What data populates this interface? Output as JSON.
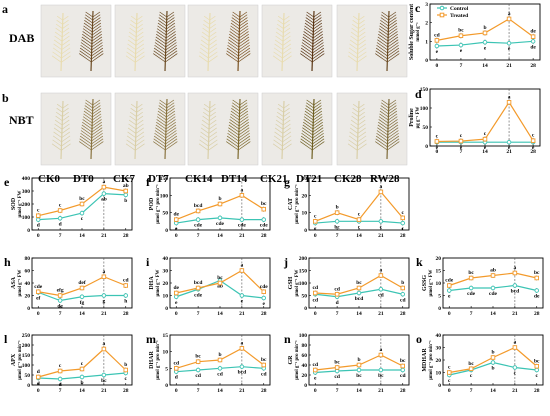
{
  "colors": {
    "control": "#3cc4b4",
    "treated": "#f39a2b",
    "stain_bg": "#eceae6"
  },
  "stains": {
    "DAB": "DAB",
    "NBT": "NBT",
    "groups": [
      "CK0",
      "DT0",
      "CK7",
      "DT7",
      "CK14",
      "DT14",
      "CK21",
      "DT21",
      "CK28",
      "RW28"
    ]
  },
  "panel_letters": {
    "a": "a",
    "b": "b"
  },
  "legend": {
    "control": "Control",
    "treated": "Treated"
  },
  "chart_data": [
    {
      "id": "c",
      "type": "line",
      "ylabel": "Soluble Sugar content",
      "unit": "mmol g⁻¹",
      "x": [
        0,
        7,
        14,
        21,
        28
      ],
      "ylim": [
        0,
        3
      ],
      "yticks": [
        0,
        1,
        2,
        3
      ],
      "series": [
        {
          "name": "Control",
          "values": [
            0.75,
            0.8,
            0.95,
            0.9,
            1.0
          ],
          "letters": [
            "e",
            "e",
            "e",
            "e",
            "de"
          ]
        },
        {
          "name": "Treated",
          "values": [
            1.05,
            1.3,
            1.45,
            2.2,
            1.25
          ],
          "letters": [
            "cd",
            "bc",
            "b",
            "a",
            "de"
          ]
        }
      ]
    },
    {
      "id": "d",
      "type": "line",
      "ylabel": "Proline",
      "unit": "μg g⁻¹ FW",
      "x": [
        0,
        7,
        14,
        21,
        28
      ],
      "ylim": [
        0,
        150
      ],
      "yticks": [
        0,
        50,
        100,
        150
      ],
      "series": [
        {
          "name": "Control",
          "values": [
            10,
            10,
            10,
            10,
            10
          ],
          "letters": [
            "e",
            "e",
            "e",
            "e",
            "e"
          ]
        },
        {
          "name": "Treated",
          "values": [
            12,
            13,
            18,
            115,
            14
          ],
          "letters": [
            "c",
            "c",
            "c",
            "a",
            "c"
          ]
        }
      ]
    },
    {
      "id": "e",
      "type": "line",
      "ylabel": "SOD",
      "unit": "μmol g⁻¹ FW",
      "x": [
        0,
        7,
        14,
        21,
        28
      ],
      "ylim": [
        0,
        400
      ],
      "yticks": [
        0,
        100,
        200,
        300,
        400
      ],
      "series": [
        {
          "name": "Control",
          "values": [
            80,
            90,
            130,
            280,
            270
          ],
          "letters": [
            "d",
            "d",
            "c",
            "ab",
            "b"
          ]
        },
        {
          "name": "Treated",
          "values": [
            110,
            150,
            200,
            330,
            300
          ],
          "letters": [
            "c",
            "c",
            "bc",
            "a",
            "ab"
          ]
        }
      ]
    },
    {
      "id": "f",
      "type": "line",
      "ylabel": "POD",
      "unit": "μmol g⁻¹ pro min⁻¹",
      "x": [
        0,
        7,
        14,
        21,
        28
      ],
      "ylim": [
        0,
        150
      ],
      "yticks": [
        0,
        50,
        100,
        150
      ],
      "series": [
        {
          "name": "Control",
          "values": [
            20,
            30,
            35,
            30,
            30
          ],
          "letters": [
            "e",
            "cde",
            "cde",
            "cde",
            "cde"
          ]
        },
        {
          "name": "Treated",
          "values": [
            30,
            55,
            75,
            100,
            60
          ],
          "letters": [
            "de",
            "bcd",
            "b",
            "a",
            "bc"
          ]
        }
      ]
    },
    {
      "id": "g",
      "type": "line",
      "ylabel": "CAT",
      "unit": "μmol g⁻¹ pro min⁻¹",
      "x": [
        0,
        7,
        14,
        21,
        28
      ],
      "ylim": [
        0,
        30
      ],
      "yticks": [
        0,
        10,
        20,
        30
      ],
      "series": [
        {
          "name": "Control",
          "values": [
            4,
            5,
            5,
            5,
            4
          ],
          "letters": [
            "c",
            "bc",
            "c",
            "c",
            "c"
          ]
        },
        {
          "name": "Treated",
          "values": [
            5,
            10,
            6,
            22,
            7
          ],
          "letters": [
            "c",
            "b",
            "c",
            "a",
            "c"
          ]
        }
      ]
    },
    {
      "id": "h",
      "type": "line",
      "ylabel": "ASA",
      "unit": "μmol g⁻¹ FW",
      "x": [
        0,
        7,
        14,
        21,
        28
      ],
      "ylim": [
        0,
        80
      ],
      "yticks": [
        0,
        20,
        40,
        60,
        80
      ],
      "series": [
        {
          "name": "Control",
          "values": [
            25,
            12,
            18,
            20,
            20
          ],
          "letters": [
            "ef",
            "de",
            "fg",
            "g",
            "h"
          ]
        },
        {
          "name": "Treated",
          "values": [
            26,
            20,
            32,
            50,
            36
          ],
          "letters": [
            "cde",
            "efg",
            "def",
            "a",
            "cd"
          ]
        }
      ]
    },
    {
      "id": "i",
      "type": "line",
      "ylabel": "DHA",
      "unit": "μmol g⁻¹ FW",
      "x": [
        0,
        7,
        14,
        21,
        28
      ],
      "ylim": [
        0,
        40
      ],
      "yticks": [
        0,
        10,
        20,
        30,
        40
      ],
      "series": [
        {
          "name": "Control",
          "values": [
            9,
            15,
            22,
            10,
            8
          ],
          "letters": [
            "e",
            "cde",
            "ab",
            "e",
            "e"
          ]
        },
        {
          "name": "Treated",
          "values": [
            12,
            16,
            20,
            30,
            13
          ],
          "letters": [
            "de",
            "bcd",
            "bc",
            "a",
            "cde"
          ]
        }
      ]
    },
    {
      "id": "j",
      "type": "line",
      "ylabel": "GSH",
      "unit": "μmol g⁻¹ FW",
      "x": [
        0,
        7,
        14,
        21,
        28
      ],
      "ylim": [
        0,
        200
      ],
      "yticks": [
        0,
        50,
        100,
        150,
        200
      ],
      "series": [
        {
          "name": "Control",
          "values": [
            55,
            45,
            60,
            75,
            55
          ],
          "letters": [
            "cd",
            "d",
            "bcd",
            "cd",
            "cd"
          ]
        },
        {
          "name": "Treated",
          "values": [
            60,
            55,
            80,
            130,
            80
          ],
          "letters": [
            "cd",
            "cd",
            "bc",
            "a",
            "b"
          ]
        }
      ]
    },
    {
      "id": "k",
      "type": "line",
      "ylabel": "GSSG",
      "unit": "μmol g⁻¹ FW",
      "x": [
        0,
        7,
        14,
        21,
        28
      ],
      "ylim": [
        0,
        20
      ],
      "yticks": [
        0,
        5,
        10,
        15,
        20
      ],
      "series": [
        {
          "name": "Control",
          "values": [
            7,
            8,
            8,
            9,
            7
          ],
          "letters": [
            "e",
            "cde",
            "cde",
            "bcd",
            "de"
          ]
        },
        {
          "name": "Treated",
          "values": [
            9,
            12,
            13,
            14,
            12
          ],
          "letters": [
            "cde",
            "bc",
            "ab",
            "a",
            "bc"
          ]
        }
      ]
    },
    {
      "id": "l",
      "type": "line",
      "ylabel": "APX",
      "unit": "μmol g⁻¹ pro min⁻¹",
      "x": [
        0,
        7,
        14,
        21,
        28
      ],
      "ylim": [
        0,
        250
      ],
      "yticks": [
        0,
        50,
        100,
        150,
        200,
        250
      ],
      "series": [
        {
          "name": "Control",
          "values": [
            35,
            30,
            40,
            50,
            60
          ],
          "letters": [
            "d",
            "d",
            "b",
            "bc",
            "c"
          ]
        },
        {
          "name": "Treated",
          "values": [
            40,
            70,
            80,
            180,
            75
          ],
          "letters": [
            "d",
            "c",
            "c",
            "a",
            "b"
          ]
        }
      ]
    },
    {
      "id": "m",
      "type": "line",
      "ylabel": "DHAR",
      "unit": "μmol g⁻¹ pro min⁻¹",
      "x": [
        0,
        7,
        14,
        21,
        28
      ],
      "ylim": [
        0,
        15
      ],
      "yticks": [
        0,
        5,
        10,
        15
      ],
      "series": [
        {
          "name": "Control",
          "values": [
            4,
            4.5,
            5,
            5.5,
            5
          ],
          "letters": [
            "d",
            "cd",
            "cd",
            "bcd",
            "cd"
          ]
        },
        {
          "name": "Treated",
          "values": [
            5,
            7,
            7.5,
            11,
            6
          ],
          "letters": [
            "cd",
            "bc",
            "b",
            "a",
            "bc"
          ]
        }
      ]
    },
    {
      "id": "n",
      "type": "line",
      "ylabel": "GR",
      "unit": "μmol g⁻¹ pro min⁻¹",
      "x": [
        0,
        7,
        14,
        21,
        28
      ],
      "ylim": [
        0,
        100
      ],
      "yticks": [
        0,
        20,
        40,
        60,
        80,
        100
      ],
      "series": [
        {
          "name": "Control",
          "values": [
            25,
            28,
            30,
            30,
            30
          ],
          "letters": [
            "e",
            "cd",
            "bc",
            "bc",
            "cd"
          ]
        },
        {
          "name": "Treated",
          "values": [
            30,
            35,
            40,
            60,
            38
          ],
          "letters": [
            "cd",
            "bc",
            "b",
            "a",
            "bc"
          ]
        }
      ]
    },
    {
      "id": "o",
      "type": "line",
      "ylabel": "MDHAR",
      "unit": "μmol g⁻¹ pro min⁻¹",
      "x": [
        0,
        7,
        14,
        21,
        28
      ],
      "ylim": [
        0,
        40
      ],
      "yticks": [
        0,
        10,
        20,
        30,
        40
      ],
      "series": [
        {
          "name": "Control",
          "values": [
            8,
            12,
            18,
            14,
            12
          ],
          "letters": [
            "c",
            "c",
            "b",
            "c",
            "c"
          ]
        },
        {
          "name": "Treated",
          "values": [
            10,
            13,
            22,
            30,
            15
          ],
          "letters": [
            "c",
            "bc",
            "b",
            "a",
            "bc"
          ]
        }
      ]
    }
  ]
}
